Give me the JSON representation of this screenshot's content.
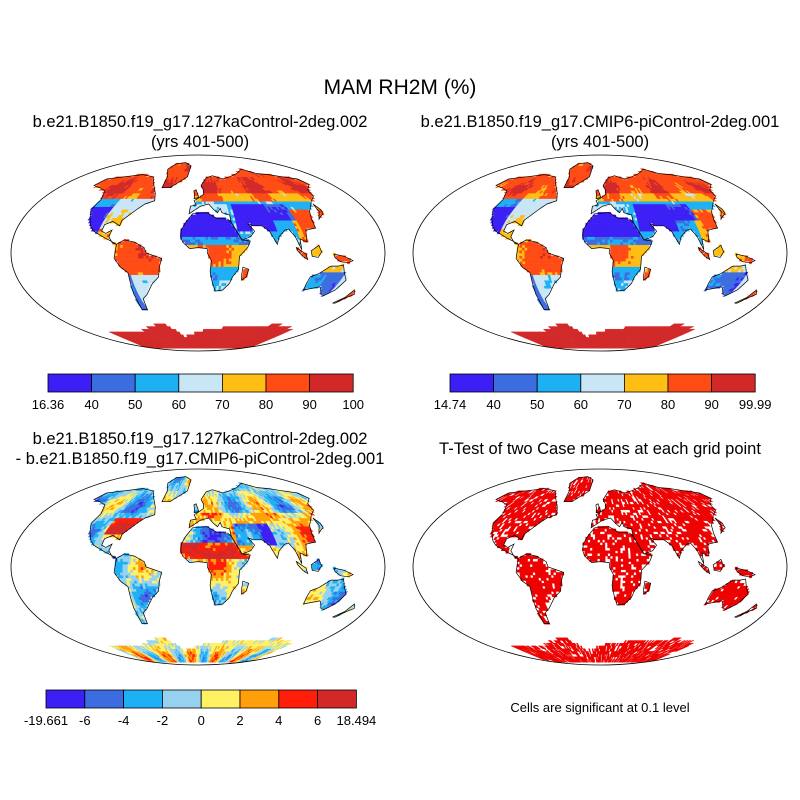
{
  "title": "MAM RH2M (%)",
  "panels": [
    {
      "id": "p1",
      "title_line1": "b.e21.B1850.f19_g17.127kaControl-2deg.002",
      "title_line2": "(yrs 401-500)",
      "field": "abs_127ka",
      "colorbar": {
        "labels": [
          "16.36",
          "40",
          "50",
          "60",
          "70",
          "80",
          "90",
          "100"
        ],
        "colors": [
          "#3c1ff5",
          "#3c6de0",
          "#1eb0f5",
          "#c8e6f5",
          "#ffbe14",
          "#ff4b14",
          "#d22828"
        ]
      }
    },
    {
      "id": "p2",
      "title_line1": "b.e21.B1850.f19_g17.CMIP6-piControl-2deg.001",
      "title_line2": "(yrs 401-500)",
      "field": "abs_pi",
      "colorbar": {
        "labels": [
          "14.74",
          "40",
          "50",
          "60",
          "70",
          "80",
          "90",
          "99.99"
        ],
        "colors": [
          "#3c1ff5",
          "#3c6de0",
          "#1eb0f5",
          "#c8e6f5",
          "#ffbe14",
          "#ff4b14",
          "#d22828"
        ]
      }
    },
    {
      "id": "p3",
      "title_line1": "b.e21.B1850.f19_g17.127kaControl-2deg.002",
      "title_line2": "- b.e21.B1850.f19_g17.CMIP6-piControl-2deg.001",
      "field": "diff",
      "colorbar": {
        "labels": [
          "-19.661",
          "-6",
          "-4",
          "-2",
          "0",
          "2",
          "4",
          "6",
          "18.494"
        ],
        "colors": [
          "#3c1ff5",
          "#3c6de0",
          "#1eb0f5",
          "#96d2f0",
          "#fff064",
          "#ffa00a",
          "#ff1e0a",
          "#d22828"
        ]
      }
    },
    {
      "id": "p4",
      "title_line1": "T-Test of two Case means at each grid point",
      "title_line2": "",
      "field": "sig",
      "sig_color": "#ee0000",
      "note": "Cells are significant at 0.1 level"
    }
  ]
}
